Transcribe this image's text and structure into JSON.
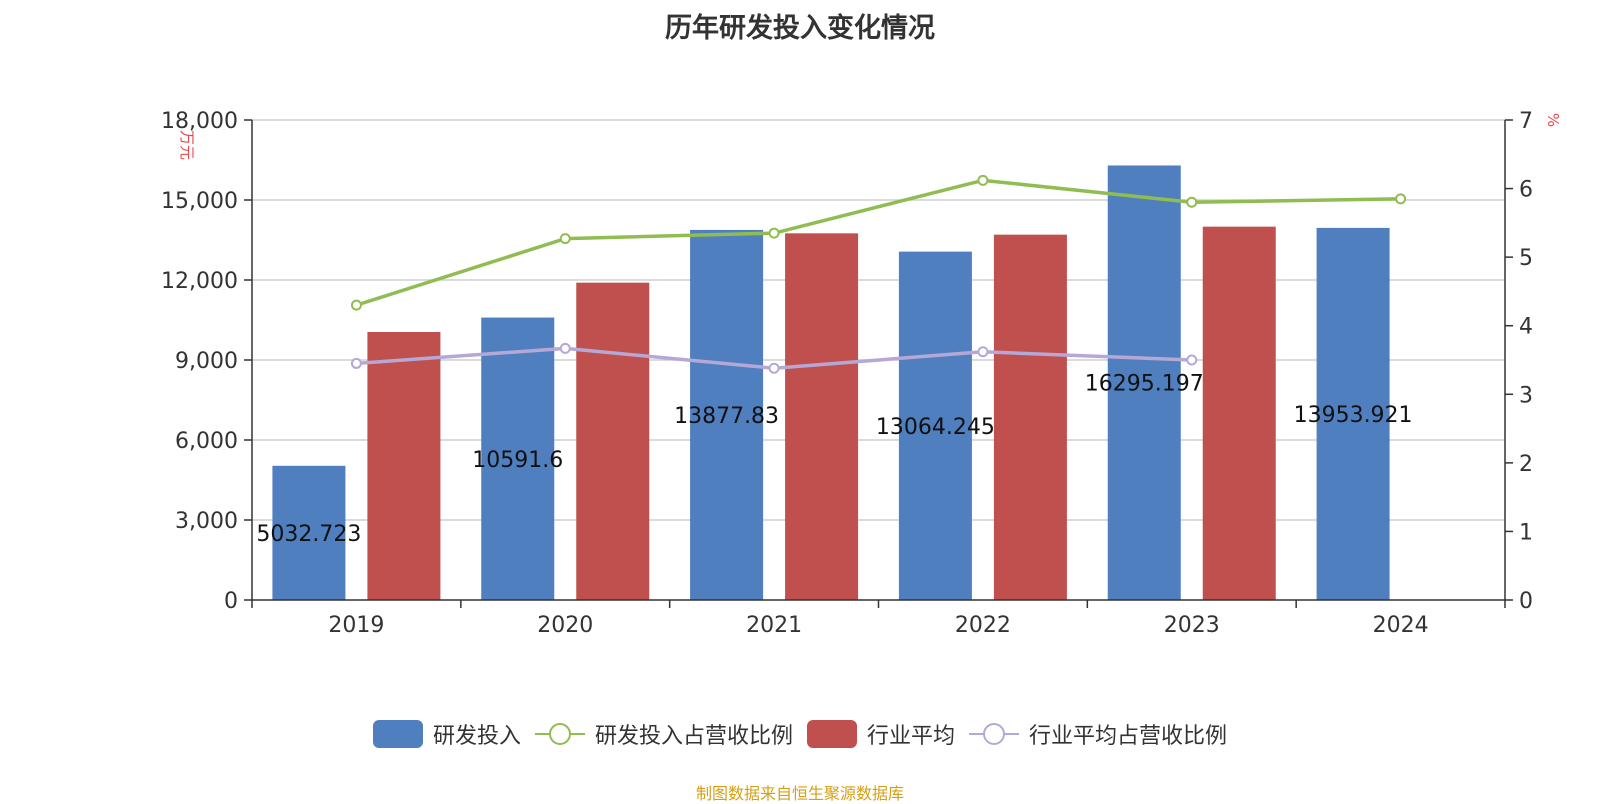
{
  "chart_data": {
    "type": "bar",
    "title": "历年研发投入变化情况",
    "categories": [
      "2019",
      "2020",
      "2021",
      "2022",
      "2023",
      "2024"
    ],
    "y_left_unit": "万元",
    "y_right_unit": "%",
    "y_left_range": [
      0,
      18000
    ],
    "y_left_ticks": [
      "0",
      "3,000",
      "6,000",
      "9,000",
      "12,000",
      "15,000",
      "18,000"
    ],
    "y_right_range": [
      0,
      7
    ],
    "y_right_ticks": [
      "0",
      "1",
      "2",
      "3",
      "4",
      "5",
      "6",
      "7"
    ],
    "grid": true,
    "legend_position": "bottom",
    "series": [
      {
        "name": "研发投入",
        "kind": "bar",
        "axis": "left",
        "color": "#4f7fbf",
        "values": [
          5032.723,
          10591.6,
          13877.83,
          13064.245,
          16295.197,
          13953.921
        ],
        "labels": [
          "5032.723",
          "10591.6",
          "13877.83",
          "13064.245",
          "16295.197",
          "13953.921"
        ]
      },
      {
        "name": "研发投入占营收比例",
        "kind": "line",
        "axis": "right",
        "color": "#91bc51",
        "values": [
          4.3,
          5.27,
          5.35,
          6.12,
          5.8,
          5.85
        ]
      },
      {
        "name": "行业平均",
        "kind": "bar",
        "axis": "left",
        "color": "#c0504d",
        "values": [
          10050,
          11900,
          13750,
          13700,
          14000,
          null
        ]
      },
      {
        "name": "行业平均占营收比例",
        "kind": "line",
        "axis": "right",
        "color": "#b6a8d6",
        "values": [
          3.45,
          3.67,
          3.38,
          3.62,
          3.5,
          null
        ]
      }
    ]
  },
  "source_text": "制图数据来自恒生聚源数据库"
}
